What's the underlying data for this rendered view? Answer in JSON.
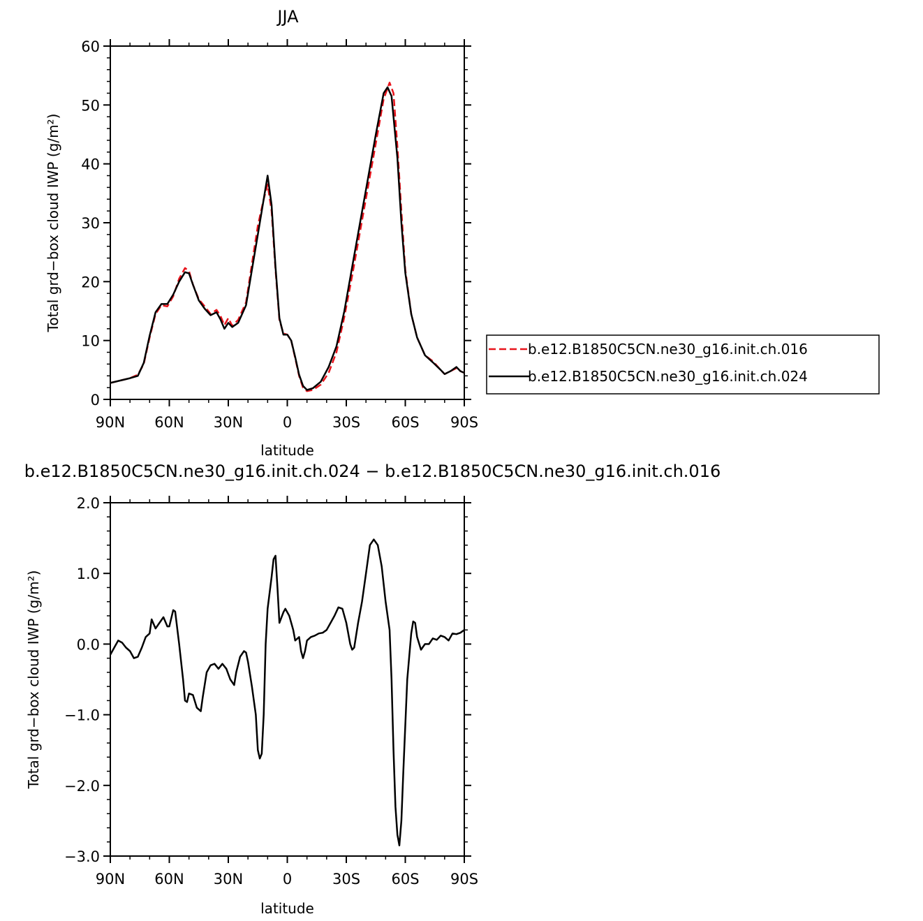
{
  "chart_data": [
    {
      "type": "line",
      "title": "JJA",
      "xlabel": "latitude",
      "ylabel": "Total grd−box cloud IWP (g/m²)",
      "xlim": [
        90,
        -90
      ],
      "ylim": [
        0,
        60
      ],
      "x_ticks": [
        {
          "value": 90,
          "label": "90N"
        },
        {
          "value": 60,
          "label": "60N"
        },
        {
          "value": 30,
          "label": "30N"
        },
        {
          "value": 0,
          "label": "0"
        },
        {
          "value": -30,
          "label": "30S"
        },
        {
          "value": -60,
          "label": "60S"
        },
        {
          "value": -90,
          "label": "90S"
        }
      ],
      "y_ticks": [
        {
          "value": 0,
          "label": "0"
        },
        {
          "value": 10,
          "label": "10"
        },
        {
          "value": 20,
          "label": "20"
        },
        {
          "value": 30,
          "label": "30"
        },
        {
          "value": 40,
          "label": "40"
        },
        {
          "value": 50,
          "label": "50"
        },
        {
          "value": 60,
          "label": "60"
        }
      ],
      "legend_position": "right",
      "series": [
        {
          "name": "b.e12.B1850C5CN.ne30_g16.init.ch.016",
          "color": "#e8141c",
          "dash": "dashed",
          "points": [
            [
              90,
              2.8
            ],
            [
              85,
              3.2
            ],
            [
              80,
              3.6
            ],
            [
              76,
              4.2
            ],
            [
              73,
              6.0
            ],
            [
              70,
              10.5
            ],
            [
              67,
              14.5
            ],
            [
              64,
              16.0
            ],
            [
              61,
              15.8
            ],
            [
              58,
              17.5
            ],
            [
              55,
              20.5
            ],
            [
              52,
              22.3
            ],
            [
              50,
              21.8
            ],
            [
              48,
              19.5
            ],
            [
              45,
              17.0
            ],
            [
              42,
              15.8
            ],
            [
              39,
              14.5
            ],
            [
              36,
              15.2
            ],
            [
              34,
              14.2
            ],
            [
              32,
              12.6
            ],
            [
              30,
              13.8
            ],
            [
              28,
              12.5
            ],
            [
              25,
              13.5
            ],
            [
              21,
              16.5
            ],
            [
              18,
              23.0
            ],
            [
              15,
              29.5
            ],
            [
              12,
              34.0
            ],
            [
              10,
              36.5
            ],
            [
              8,
              32.0
            ],
            [
              6,
              22.0
            ],
            [
              4,
              13.5
            ],
            [
              2,
              11.2
            ],
            [
              0,
              11.0
            ],
            [
              -2,
              10.0
            ],
            [
              -4,
              7.0
            ],
            [
              -6,
              4.0
            ],
            [
              -8,
              2.0
            ],
            [
              -10,
              1.4
            ],
            [
              -13,
              1.6
            ],
            [
              -17,
              2.5
            ],
            [
              -21,
              4.5
            ],
            [
              -25,
              8.0
            ],
            [
              -29,
              14.0
            ],
            [
              -33,
              21.0
            ],
            [
              -37,
              28.5
            ],
            [
              -41,
              36.0
            ],
            [
              -45,
              43.5
            ],
            [
              -49,
              51.0
            ],
            [
              -52,
              53.8
            ],
            [
              -54,
              52.0
            ],
            [
              -56,
              43.0
            ],
            [
              -58,
              32.0
            ],
            [
              -60,
              22.0
            ],
            [
              -63,
              14.5
            ],
            [
              -66,
              10.5
            ],
            [
              -70,
              7.5
            ],
            [
              -74,
              6.5
            ],
            [
              -78,
              5.0
            ],
            [
              -80,
              4.3
            ],
            [
              -83,
              4.8
            ],
            [
              -86,
              5.3
            ],
            [
              -88,
              4.8
            ],
            [
              -90,
              4.5
            ]
          ]
        },
        {
          "name": "b.e12.B1850C5CN.ne30_g16.init.ch.024",
          "color": "#000000",
          "dash": "solid",
          "points": [
            [
              90,
              2.8
            ],
            [
              85,
              3.2
            ],
            [
              80,
              3.6
            ],
            [
              76,
              4.0
            ],
            [
              73,
              6.2
            ],
            [
              70,
              10.8
            ],
            [
              67,
              14.8
            ],
            [
              64,
              16.2
            ],
            [
              61,
              16.2
            ],
            [
              58,
              17.8
            ],
            [
              55,
              20.0
            ],
            [
              52,
              21.6
            ],
            [
              50,
              21.4
            ],
            [
              48,
              19.5
            ],
            [
              45,
              16.8
            ],
            [
              42,
              15.4
            ],
            [
              39,
              14.3
            ],
            [
              36,
              14.8
            ],
            [
              34,
              13.6
            ],
            [
              32,
              12.0
            ],
            [
              30,
              13.0
            ],
            [
              28,
              12.3
            ],
            [
              25,
              13.0
            ],
            [
              21,
              16.0
            ],
            [
              18,
              22.0
            ],
            [
              15,
              28.0
            ],
            [
              12,
              34.0
            ],
            [
              10,
              38.0
            ],
            [
              8,
              33.0
            ],
            [
              6,
              22.5
            ],
            [
              4,
              13.8
            ],
            [
              2,
              11.0
            ],
            [
              0,
              11.0
            ],
            [
              -2,
              10.0
            ],
            [
              -4,
              7.2
            ],
            [
              -6,
              4.2
            ],
            [
              -8,
              2.3
            ],
            [
              -10,
              1.6
            ],
            [
              -13,
              1.9
            ],
            [
              -17,
              3.0
            ],
            [
              -21,
              5.5
            ],
            [
              -25,
              9.0
            ],
            [
              -29,
              15.0
            ],
            [
              -33,
              22.5
            ],
            [
              -37,
              30.0
            ],
            [
              -41,
              37.5
            ],
            [
              -45,
              45.0
            ],
            [
              -49,
              52.0
            ],
            [
              -51,
              53.0
            ],
            [
              -53,
              51.5
            ],
            [
              -56,
              41.0
            ],
            [
              -58,
              30.0
            ],
            [
              -60,
              21.5
            ],
            [
              -63,
              14.5
            ],
            [
              -66,
              10.5
            ],
            [
              -70,
              7.5
            ],
            [
              -74,
              6.3
            ],
            [
              -78,
              5.0
            ],
            [
              -80,
              4.3
            ],
            [
              -83,
              4.8
            ],
            [
              -86,
              5.5
            ],
            [
              -88,
              4.8
            ],
            [
              -90,
              4.5
            ]
          ]
        }
      ]
    },
    {
      "type": "line",
      "title": "b.e12.B1850C5CN.ne30_g16.init.ch.024 − b.e12.B1850C5CN.ne30_g16.init.ch.016",
      "xlabel": "latitude",
      "ylabel": "Total grd−box cloud IWP (g/m²)",
      "xlim": [
        90,
        -90
      ],
      "ylim": [
        -3.0,
        2.0
      ],
      "x_ticks": [
        {
          "value": 90,
          "label": "90N"
        },
        {
          "value": 60,
          "label": "60N"
        },
        {
          "value": 30,
          "label": "30N"
        },
        {
          "value": 0,
          "label": "0"
        },
        {
          "value": -30,
          "label": "30S"
        },
        {
          "value": -60,
          "label": "60S"
        },
        {
          "value": -90,
          "label": "90S"
        }
      ],
      "y_ticks": [
        {
          "value": -3.0,
          "label": "−3.0"
        },
        {
          "value": -2.0,
          "label": "−2.0"
        },
        {
          "value": -1.0,
          "label": "−1.0"
        },
        {
          "value": 0.0,
          "label": "0.0"
        },
        {
          "value": 1.0,
          "label": "1.0"
        },
        {
          "value": 2.0,
          "label": "2.0"
        }
      ],
      "series": [
        {
          "name": "",
          "color": "#000000",
          "dash": "solid",
          "points": [
            [
              90,
              -0.15
            ],
            [
              88,
              -0.05
            ],
            [
              86,
              0.05
            ],
            [
              84,
              0.02
            ],
            [
              82,
              -0.05
            ],
            [
              80,
              -0.1
            ],
            [
              78,
              -0.2
            ],
            [
              76,
              -0.18
            ],
            [
              74,
              -0.05
            ],
            [
              72,
              0.1
            ],
            [
              70,
              0.15
            ],
            [
              69,
              0.35
            ],
            [
              67,
              0.22
            ],
            [
              65,
              0.3
            ],
            [
              63,
              0.38
            ],
            [
              61,
              0.25
            ],
            [
              60,
              0.25
            ],
            [
              58,
              0.48
            ],
            [
              57,
              0.46
            ],
            [
              55,
              0.0
            ],
            [
              53,
              -0.5
            ],
            [
              52,
              -0.8
            ],
            [
              51,
              -0.82
            ],
            [
              50,
              -0.7
            ],
            [
              48,
              -0.72
            ],
            [
              46,
              -0.9
            ],
            [
              44,
              -0.95
            ],
            [
              43,
              -0.75
            ],
            [
              41,
              -0.4
            ],
            [
              39,
              -0.3
            ],
            [
              37,
              -0.28
            ],
            [
              35,
              -0.35
            ],
            [
              33,
              -0.28
            ],
            [
              31,
              -0.35
            ],
            [
              29,
              -0.5
            ],
            [
              27,
              -0.58
            ],
            [
              26,
              -0.4
            ],
            [
              24,
              -0.18
            ],
            [
              22,
              -0.1
            ],
            [
              21,
              -0.12
            ],
            [
              20,
              -0.25
            ],
            [
              18,
              -0.6
            ],
            [
              16,
              -1.0
            ],
            [
              15,
              -1.5
            ],
            [
              14,
              -1.62
            ],
            [
              13,
              -1.55
            ],
            [
              12,
              -1.0
            ],
            [
              11,
              0.0
            ],
            [
              10,
              0.5
            ],
            [
              8,
              0.95
            ],
            [
              7,
              1.2
            ],
            [
              6,
              1.25
            ],
            [
              5,
              0.8
            ],
            [
              4,
              0.3
            ],
            [
              2,
              0.45
            ],
            [
              1,
              0.5
            ],
            [
              0,
              0.45
            ],
            [
              -1,
              0.4
            ],
            [
              -3,
              0.2
            ],
            [
              -4,
              0.05
            ],
            [
              -6,
              0.1
            ],
            [
              -7,
              -0.1
            ],
            [
              -8,
              -0.2
            ],
            [
              -9,
              -0.1
            ],
            [
              -10,
              0.05
            ],
            [
              -12,
              0.1
            ],
            [
              -14,
              0.12
            ],
            [
              -16,
              0.15
            ],
            [
              -18,
              0.16
            ],
            [
              -20,
              0.2
            ],
            [
              -22,
              0.3
            ],
            [
              -24,
              0.4
            ],
            [
              -26,
              0.52
            ],
            [
              -28,
              0.5
            ],
            [
              -30,
              0.3
            ],
            [
              -32,
              0.0
            ],
            [
              -33,
              -0.08
            ],
            [
              -34,
              -0.05
            ],
            [
              -36,
              0.3
            ],
            [
              -38,
              0.6
            ],
            [
              -40,
              1.0
            ],
            [
              -42,
              1.4
            ],
            [
              -44,
              1.48
            ],
            [
              -46,
              1.4
            ],
            [
              -48,
              1.1
            ],
            [
              -50,
              0.6
            ],
            [
              -52,
              0.2
            ],
            [
              -53,
              -0.5
            ],
            [
              -54,
              -1.5
            ],
            [
              -55,
              -2.3
            ],
            [
              -56,
              -2.7
            ],
            [
              -57,
              -2.85
            ],
            [
              -58,
              -2.5
            ],
            [
              -59,
              -1.8
            ],
            [
              -61,
              -0.5
            ],
            [
              -63,
              0.15
            ],
            [
              -64,
              0.32
            ],
            [
              -65,
              0.3
            ],
            [
              -66,
              0.1
            ],
            [
              -68,
              -0.08
            ],
            [
              -70,
              0.0
            ],
            [
              -72,
              0.0
            ],
            [
              -74,
              0.08
            ],
            [
              -76,
              0.06
            ],
            [
              -78,
              0.12
            ],
            [
              -80,
              0.1
            ],
            [
              -82,
              0.05
            ],
            [
              -84,
              0.15
            ],
            [
              -86,
              0.14
            ],
            [
              -88,
              0.16
            ],
            [
              -90,
              0.2
            ]
          ]
        }
      ]
    }
  ]
}
